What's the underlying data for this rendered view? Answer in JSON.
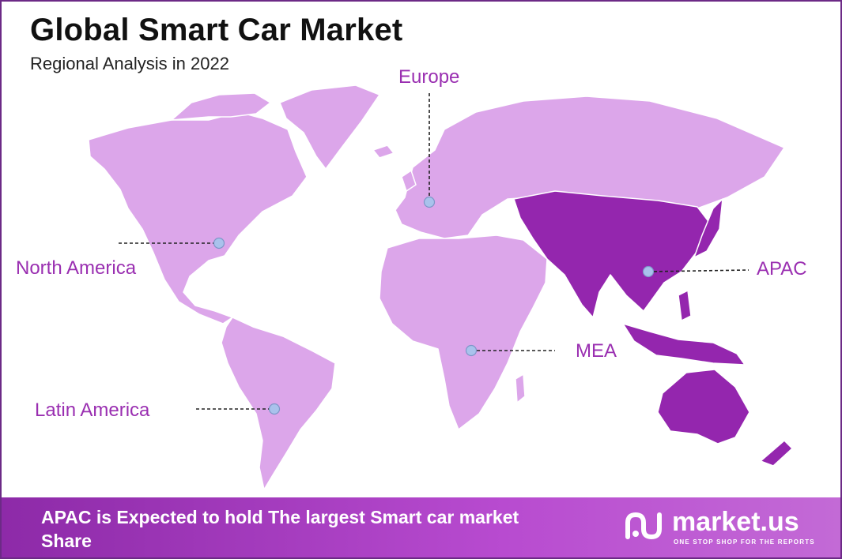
{
  "header": {
    "title": "Global Smart Car Market",
    "subtitle": "Regional Analysis in 2022"
  },
  "regions": [
    {
      "id": "north-america",
      "label": "North America"
    },
    {
      "id": "europe",
      "label": "Europe"
    },
    {
      "id": "apac",
      "label": "APAC"
    },
    {
      "id": "mea",
      "label": "MEA"
    },
    {
      "id": "latin-america",
      "label": "Latin America"
    }
  ],
  "footer": {
    "headline": "APAC is Expected to hold The largest Smart car market Share"
  },
  "brand": {
    "name": "market.us",
    "tagline": "ONE STOP SHOP FOR THE REPORTS"
  },
  "colors": {
    "land": "#dca6ea",
    "highlight": "#9426ae",
    "label": "#9a2fb1",
    "marker": "#a9c2ec",
    "footer_start": "#8d2aa8",
    "footer_end": "#c36ad6",
    "border": "#6c2a86"
  }
}
